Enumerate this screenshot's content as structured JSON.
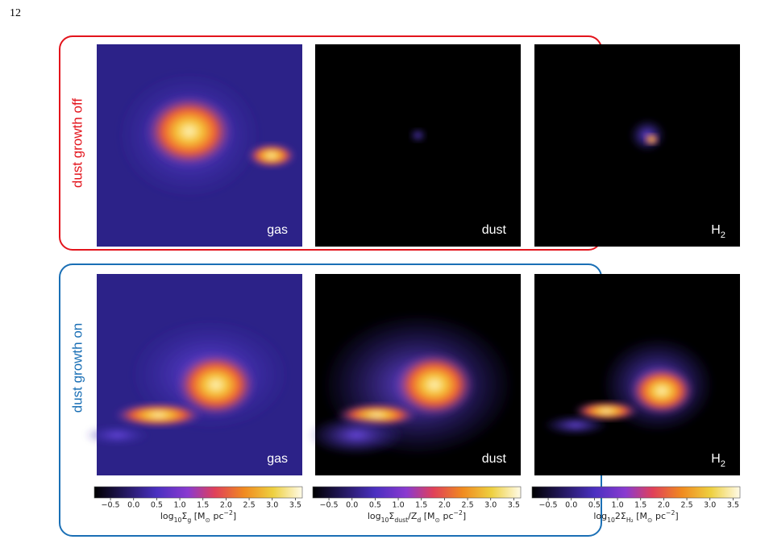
{
  "page_number": "12",
  "rows": [
    {
      "label": "dust growth off",
      "color": "#e3141c",
      "panels": [
        {
          "label": [
            {
              "text": "gas"
            }
          ]
        },
        {
          "label": [
            {
              "text": "dust"
            }
          ]
        },
        {
          "label": [
            {
              "text": "H"
            },
            {
              "text": "2",
              "sub": true
            }
          ]
        }
      ]
    },
    {
      "label": "dust growth on",
      "color": "#1a6fb5",
      "panels": [
        {
          "label": [
            {
              "text": "gas"
            }
          ]
        },
        {
          "label": [
            {
              "text": "dust"
            }
          ]
        },
        {
          "label": [
            {
              "text": "H"
            },
            {
              "text": "2",
              "sub": true
            }
          ]
        }
      ]
    }
  ],
  "colorbars": [
    {
      "range": [
        -0.85,
        3.65
      ],
      "label": [
        {
          "text": "log"
        },
        {
          "text": "10",
          "sub": true
        },
        {
          "text": "Σ"
        },
        {
          "text": "g",
          "sub": true
        },
        {
          "text": " [M"
        },
        {
          "text": "⊙",
          "sub": true
        },
        {
          "text": " pc"
        },
        {
          "text": "−2",
          "sup": true
        },
        {
          "text": "]"
        }
      ],
      "ticks": [
        {
          "value": -0.5,
          "label": "−0.5"
        },
        {
          "value": 0,
          "label": "0.0"
        },
        0.5,
        {
          "value": 1,
          "label": "1.0"
        },
        1.5,
        {
          "value": 2,
          "label": "2.0"
        },
        2.5,
        {
          "value": 3,
          "label": "3.0"
        },
        3.5
      ]
    },
    {
      "range": [
        -0.85,
        3.65
      ],
      "label": [
        {
          "text": "log"
        },
        {
          "text": "10",
          "sub": true
        },
        {
          "text": "Σ"
        },
        {
          "text": "dust",
          "sub": true
        },
        {
          "text": "/Z"
        },
        {
          "text": "d",
          "sub": true
        },
        {
          "text": " [M"
        },
        {
          "text": "⊙",
          "sub": true
        },
        {
          "text": " pc"
        },
        {
          "text": "−2",
          "sup": true
        },
        {
          "text": "]"
        }
      ],
      "ticks": [
        {
          "value": -0.5,
          "label": "−0.5"
        },
        {
          "value": 0,
          "label": "0.0"
        },
        0.5,
        {
          "value": 1,
          "label": "1.0"
        },
        1.5,
        {
          "value": 2,
          "label": "2.0"
        },
        2.5,
        {
          "value": 3,
          "label": "3.0"
        },
        3.5
      ]
    },
    {
      "range": [
        -0.85,
        3.65
      ],
      "label": [
        {
          "text": "log"
        },
        {
          "text": "10",
          "sub": true
        },
        {
          "text": "2Σ"
        },
        {
          "text": "H₂",
          "sub": true
        },
        {
          "text": " [M"
        },
        {
          "text": "⊙",
          "sub": true
        },
        {
          "text": " pc"
        },
        {
          "text": "−2",
          "sup": true
        },
        {
          "text": "]"
        }
      ],
      "ticks": [
        {
          "value": -0.5,
          "label": "−0.5"
        },
        {
          "value": 0,
          "label": "0.0"
        },
        0.5,
        {
          "value": 1,
          "label": "1.0"
        },
        1.5,
        {
          "value": 2,
          "label": "2.0"
        },
        2.5,
        {
          "value": 3,
          "label": "3.0"
        },
        3.5
      ]
    }
  ]
}
